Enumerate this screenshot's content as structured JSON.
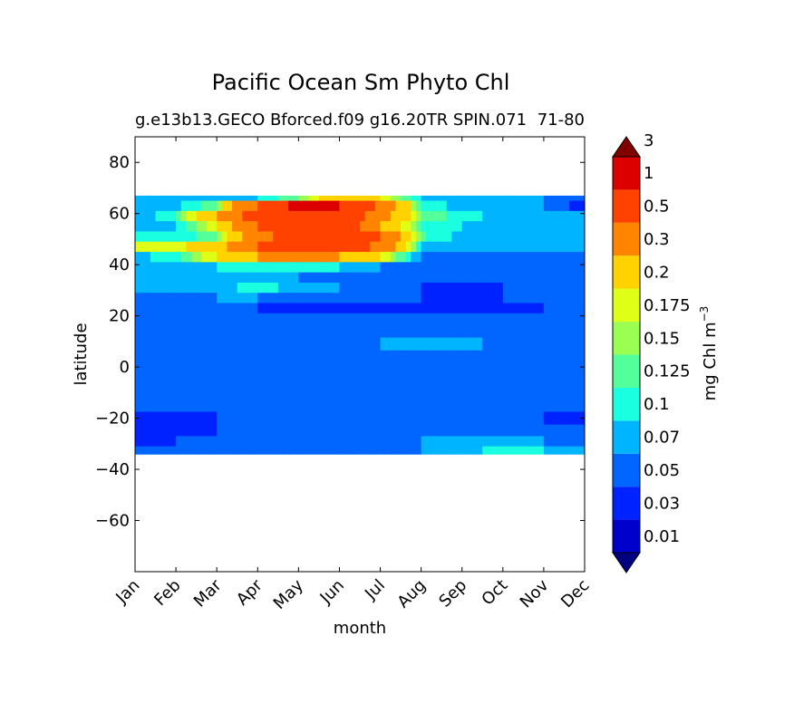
{
  "chart_data": {
    "type": "heatmap",
    "title": "Pacific Ocean Sm Phyto Chl",
    "subtitle": "g.e13b13.GECO Bforced.f09 g16.20TR SPIN.071",
    "subtitle_right": "71-80",
    "xlabel": "month",
    "ylabel": "latitude",
    "x_categories": [
      "Jan",
      "Feb",
      "Mar",
      "Apr",
      "May",
      "Jun",
      "Jul",
      "Aug",
      "Sep",
      "Oct",
      "Nov",
      "Dec"
    ],
    "y_ticks": [
      80,
      60,
      40,
      20,
      0,
      -20,
      -40,
      -60
    ],
    "y_tick_labels": [
      "80",
      "60",
      "40",
      "20",
      "0",
      "−20",
      "−40",
      "−60"
    ],
    "ylim": [
      -80,
      90
    ],
    "data_lat_range": [
      -34,
      67
    ],
    "colorbar": {
      "label": "mg Chl m",
      "label_exponent": "−3",
      "levels": [
        "0.01",
        "0.03",
        "0.05",
        "0.07",
        "0.1",
        "0.125",
        "0.15",
        "0.175",
        "0.2",
        "0.3",
        "0.5",
        "1",
        "3"
      ],
      "colors": [
        "#000080",
        "#0000cd",
        "#0022ff",
        "#0066ff",
        "#00b4ff",
        "#1affe0",
        "#52ff9a",
        "#9aff52",
        "#e0ff16",
        "#ffd200",
        "#ff8400",
        "#ff4200",
        "#dd0000",
        "#800000"
      ],
      "extend": "both"
    },
    "bands": [
      {
        "lat": 67,
        "values": [
          0.07,
          0.07,
          0.08,
          0.1,
          0.15,
          0.25,
          0.2,
          0.1,
          0.08,
          0.07,
          0.07,
          0.06
        ]
      },
      {
        "lat": 63,
        "values": [
          0.07,
          0.09,
          0.15,
          0.5,
          1.2,
          1.0,
          0.4,
          0.12,
          0.09,
          0.08,
          0.07,
          0.04
        ]
      },
      {
        "lat": 59,
        "values": [
          0.08,
          0.12,
          0.3,
          0.6,
          0.8,
          0.8,
          0.35,
          0.15,
          0.11,
          0.09,
          0.07,
          0.07
        ]
      },
      {
        "lat": 55,
        "values": [
          0.09,
          0.1,
          0.2,
          0.5,
          0.7,
          0.7,
          0.3,
          0.12,
          0.1,
          0.08,
          0.07,
          0.07
        ]
      },
      {
        "lat": 51,
        "values": [
          0.1,
          0.1,
          0.15,
          0.4,
          0.7,
          0.7,
          0.5,
          0.13,
          0.09,
          0.09,
          0.08,
          0.08
        ]
      },
      {
        "lat": 47,
        "values": [
          0.2,
          0.18,
          0.25,
          0.5,
          0.8,
          0.8,
          0.4,
          0.1,
          0.09,
          0.09,
          0.09,
          0.08
        ]
      },
      {
        "lat": 43,
        "values": [
          0.09,
          0.12,
          0.2,
          0.3,
          0.35,
          0.3,
          0.2,
          0.07,
          0.06,
          0.06,
          0.06,
          0.06
        ]
      },
      {
        "lat": 39,
        "values": [
          0.07,
          0.08,
          0.1,
          0.12,
          0.12,
          0.1,
          0.07,
          0.06,
          0.05,
          0.05,
          0.05,
          0.05
        ]
      },
      {
        "lat": 35,
        "values": [
          0.08,
          0.08,
          0.08,
          0.07,
          0.07,
          0.06,
          0.06,
          0.05,
          0.05,
          0.05,
          0.05,
          0.05
        ]
      },
      {
        "lat": 31,
        "values": [
          0.08,
          0.08,
          0.09,
          0.11,
          0.09,
          0.07,
          0.06,
          0.05,
          0.04,
          0.05,
          0.05,
          0.05
        ]
      },
      {
        "lat": 27,
        "values": [
          0.06,
          0.06,
          0.07,
          0.07,
          0.06,
          0.06,
          0.06,
          0.05,
          0.04,
          0.05,
          0.05,
          0.05
        ]
      },
      {
        "lat": 23,
        "values": [
          0.05,
          0.05,
          0.05,
          0.05,
          0.04,
          0.04,
          0.04,
          0.04,
          0.04,
          0.04,
          0.05,
          0.05
        ]
      },
      {
        "lat": 19,
        "values": [
          0.06,
          0.06,
          0.06,
          0.06,
          0.06,
          0.05,
          0.05,
          0.05,
          0.05,
          0.05,
          0.05,
          0.05
        ]
      },
      {
        "lat": 14,
        "values": [
          0.06,
          0.06,
          0.06,
          0.06,
          0.06,
          0.06,
          0.06,
          0.06,
          0.06,
          0.06,
          0.06,
          0.06
        ]
      },
      {
        "lat": 9,
        "values": [
          0.06,
          0.06,
          0.06,
          0.06,
          0.06,
          0.06,
          0.07,
          0.08,
          0.08,
          0.06,
          0.06,
          0.06
        ]
      },
      {
        "lat": 4,
        "values": [
          0.05,
          0.05,
          0.05,
          0.05,
          0.05,
          0.05,
          0.05,
          0.05,
          0.05,
          0.05,
          0.05,
          0.05
        ]
      },
      {
        "lat": 0,
        "values": [
          0.05,
          0.05,
          0.05,
          0.05,
          0.05,
          0.05,
          0.05,
          0.05,
          0.05,
          0.05,
          0.05,
          0.05
        ]
      },
      {
        "lat": -5,
        "values": [
          0.05,
          0.05,
          0.05,
          0.05,
          0.05,
          0.05,
          0.05,
          0.05,
          0.05,
          0.05,
          0.05,
          0.05
        ]
      },
      {
        "lat": -10,
        "values": [
          0.06,
          0.06,
          0.06,
          0.06,
          0.06,
          0.06,
          0.06,
          0.06,
          0.06,
          0.06,
          0.06,
          0.06
        ]
      },
      {
        "lat": -15,
        "values": [
          0.06,
          0.06,
          0.06,
          0.06,
          0.06,
          0.06,
          0.06,
          0.06,
          0.06,
          0.06,
          0.05,
          0.05
        ]
      },
      {
        "lat": -20,
        "values": [
          0.04,
          0.04,
          0.05,
          0.06,
          0.06,
          0.06,
          0.06,
          0.06,
          0.06,
          0.05,
          0.05,
          0.04
        ]
      },
      {
        "lat": -25,
        "values": [
          0.04,
          0.04,
          0.05,
          0.06,
          0.06,
          0.06,
          0.06,
          0.06,
          0.06,
          0.06,
          0.06,
          0.05
        ]
      },
      {
        "lat": -29,
        "values": [
          0.04,
          0.05,
          0.05,
          0.06,
          0.06,
          0.06,
          0.06,
          0.07,
          0.08,
          0.08,
          0.07,
          0.06
        ]
      },
      {
        "lat": -33,
        "values": [
          0.05,
          0.05,
          0.06,
          0.06,
          0.06,
          0.06,
          0.06,
          0.07,
          0.09,
          0.11,
          0.1,
          0.07
        ]
      }
    ]
  }
}
